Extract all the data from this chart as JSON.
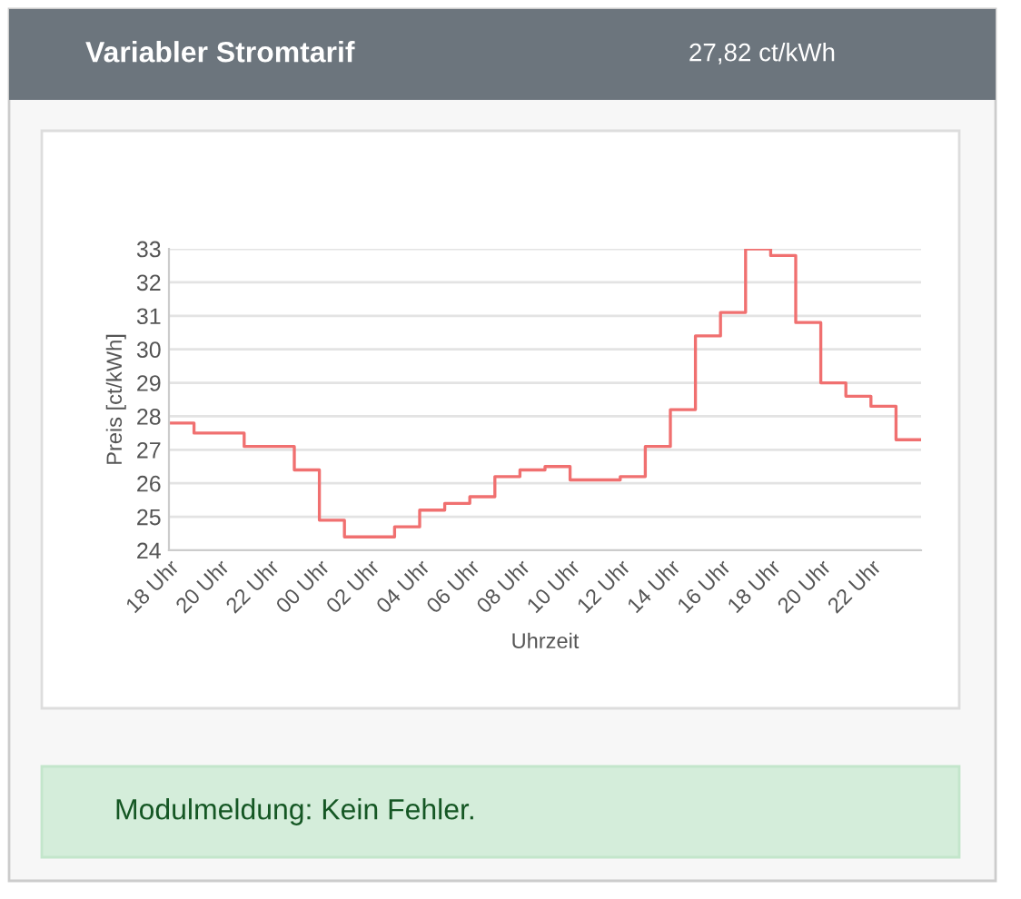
{
  "chart_data": {
    "type": "step",
    "title": "Variabler Stromtarif",
    "xlabel": "Uhrzeit",
    "ylabel": "Preis [ct/kWh]",
    "annotations": [
      "27,82 ct/kWh",
      "Modulmeldung: Kein Fehler."
    ],
    "categories": [
      "18 Uhr",
      null,
      "20 Uhr",
      null,
      "22 Uhr",
      null,
      "00 Uhr",
      null,
      "02 Uhr",
      null,
      "04 Uhr",
      null,
      "06 Uhr",
      null,
      "08 Uhr",
      null,
      "10 Uhr",
      null,
      "12 Uhr",
      null,
      "14 Uhr",
      null,
      "16 Uhr",
      null,
      "18 Uhr",
      null,
      "20 Uhr",
      null,
      "22 Uhr",
      null,
      null
    ],
    "series": [
      {
        "color": "#f07070",
        "values": [
          27.8,
          27.5,
          27.5,
          27.1,
          27.1,
          26.4,
          24.9,
          24.4,
          24.4,
          24.7,
          25.2,
          25.4,
          25.6,
          26.2,
          26.4,
          26.5,
          26.1,
          26.1,
          26.2,
          27.1,
          28.2,
          30.4,
          31.1,
          33.0,
          32.8,
          30.8,
          29.0,
          28.6,
          28.3,
          27.3,
          27.3
        ]
      }
    ],
    "ylim": [
      24,
      33
    ],
    "yticks": [
      24,
      25,
      26,
      27,
      28,
      29,
      30,
      31,
      32,
      33
    ],
    "grid": "y",
    "legend": false
  }
}
